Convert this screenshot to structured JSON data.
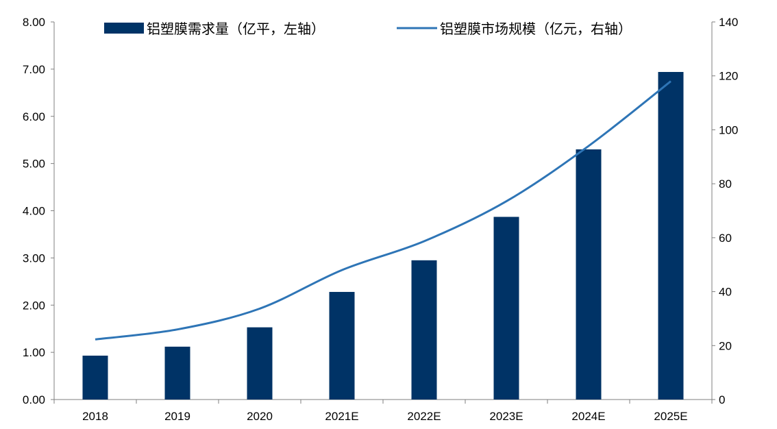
{
  "chart_data": {
    "type": "bar",
    "categories": [
      "2018",
      "2019",
      "2020",
      "2021E",
      "2022E",
      "2023E",
      "2024E",
      "2025E"
    ],
    "series": [
      {
        "name": "铝塑膜需求量（亿平，左轴）",
        "type": "bar",
        "axis": "left",
        "color": "#003366",
        "values": [
          0.93,
          1.12,
          1.53,
          2.28,
          2.95,
          3.87,
          5.3,
          6.94
        ]
      },
      {
        "name": "铝塑膜市场规模（亿元，右轴）",
        "type": "line",
        "axis": "right",
        "color": "#2e75b6",
        "values": [
          22.3,
          26.0,
          33.7,
          48.0,
          58.7,
          73.5,
          94.0,
          118.0
        ]
      }
    ],
    "y_left": {
      "range": [
        0,
        8
      ],
      "ticks": [
        "0.00",
        "1.00",
        "2.00",
        "3.00",
        "4.00",
        "5.00",
        "6.00",
        "7.00",
        "8.00"
      ]
    },
    "y_right": {
      "range": [
        0,
        140
      ],
      "ticks": [
        "0",
        "20",
        "40",
        "60",
        "80",
        "100",
        "120",
        "140"
      ]
    },
    "grid": false,
    "legend_position": "top"
  }
}
